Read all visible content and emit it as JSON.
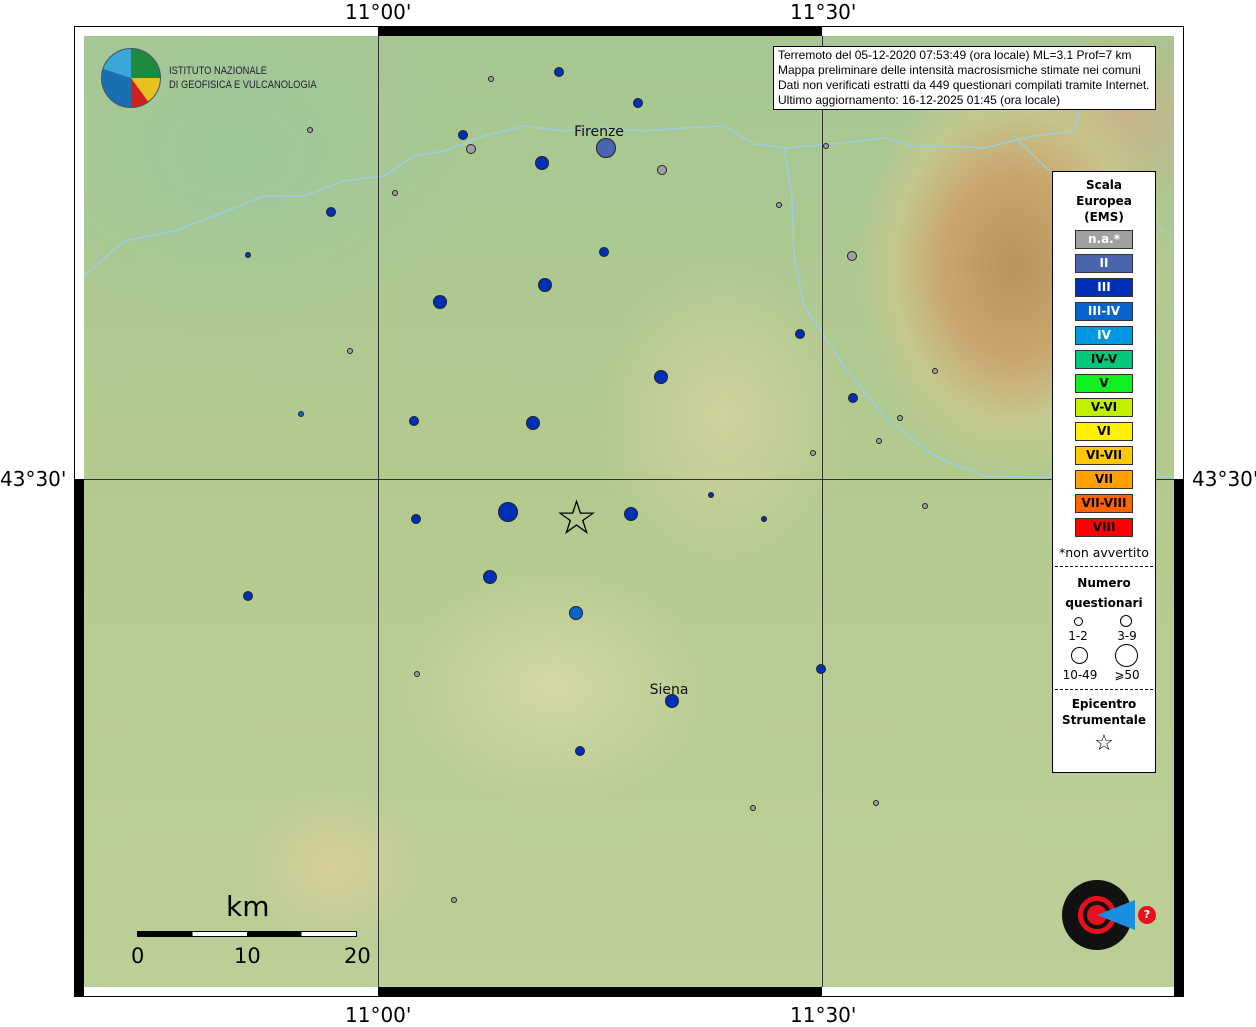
{
  "header": {
    "lon_ticks": [
      "11°00'",
      "11°30'"
    ],
    "lat_ticks": [
      "43°30'",
      "43°30'"
    ]
  },
  "info": {
    "lines": [
      "Terremoto del 05-12-2020 07:53:49 (ora locale) ML=3.1 Prof=7 km",
      "Mappa preliminare delle intensità macrosismiche stimate nei comuni",
      "Dati non verificati estratti da 449 questionari compilati tramite Internet.",
      "Ultimo aggiornamento: 16-12-2025 01:45 (ora locale)"
    ]
  },
  "logo_ingv": {
    "lines": [
      "ISTITUTO NAZIONALE",
      "DI GEOFISICA E VULCANOLOGIA"
    ]
  },
  "logo_hsit": {
    "text": "www.haisentitoilterremoto.it"
  },
  "cities": {
    "firenze": "Firenze",
    "siena": "Siena"
  },
  "scale": {
    "unit": "km",
    "labels": [
      "0",
      "10",
      "20"
    ]
  },
  "legend": {
    "title": [
      "Scala",
      "Europea",
      "(EMS)"
    ],
    "classes": [
      {
        "label": "n.a.*",
        "color": "#a0a0a0",
        "text": "#fff"
      },
      {
        "label": "II",
        "color": "#4a64ad",
        "text": "#fff"
      },
      {
        "label": "III",
        "color": "#0030b8",
        "text": "#fff"
      },
      {
        "label": "III-IV",
        "color": "#0a64cc",
        "text": "#fff"
      },
      {
        "label": "IV",
        "color": "#0098e0",
        "text": "#fff"
      },
      {
        "label": "IV-V",
        "color": "#00c878",
        "text": "#000"
      },
      {
        "label": "V",
        "color": "#10f020",
        "text": "#000"
      },
      {
        "label": "V-VI",
        "color": "#c0f000",
        "text": "#000"
      },
      {
        "label": "VI",
        "color": "#fff000",
        "text": "#000"
      },
      {
        "label": "VI-VII",
        "color": "#ffc800",
        "text": "#000"
      },
      {
        "label": "VII",
        "color": "#ffa000",
        "text": "#000"
      },
      {
        "label": "VII-VIII",
        "color": "#ff6400",
        "text": "#000"
      },
      {
        "label": "VIII",
        "color": "#ff0000",
        "text": "#000"
      }
    ],
    "note": "*non avvertito",
    "count_title": [
      "Numero",
      "questionari"
    ],
    "count_labels": [
      "1-2",
      "3-9",
      "10-49",
      "⩾50"
    ],
    "epicenter_title": [
      "Epicentro",
      "Strumentale"
    ],
    "epicenter_icon": "star-icon"
  },
  "colors": {
    "river": "#9ccfe0",
    "grid": "#333333"
  }
}
